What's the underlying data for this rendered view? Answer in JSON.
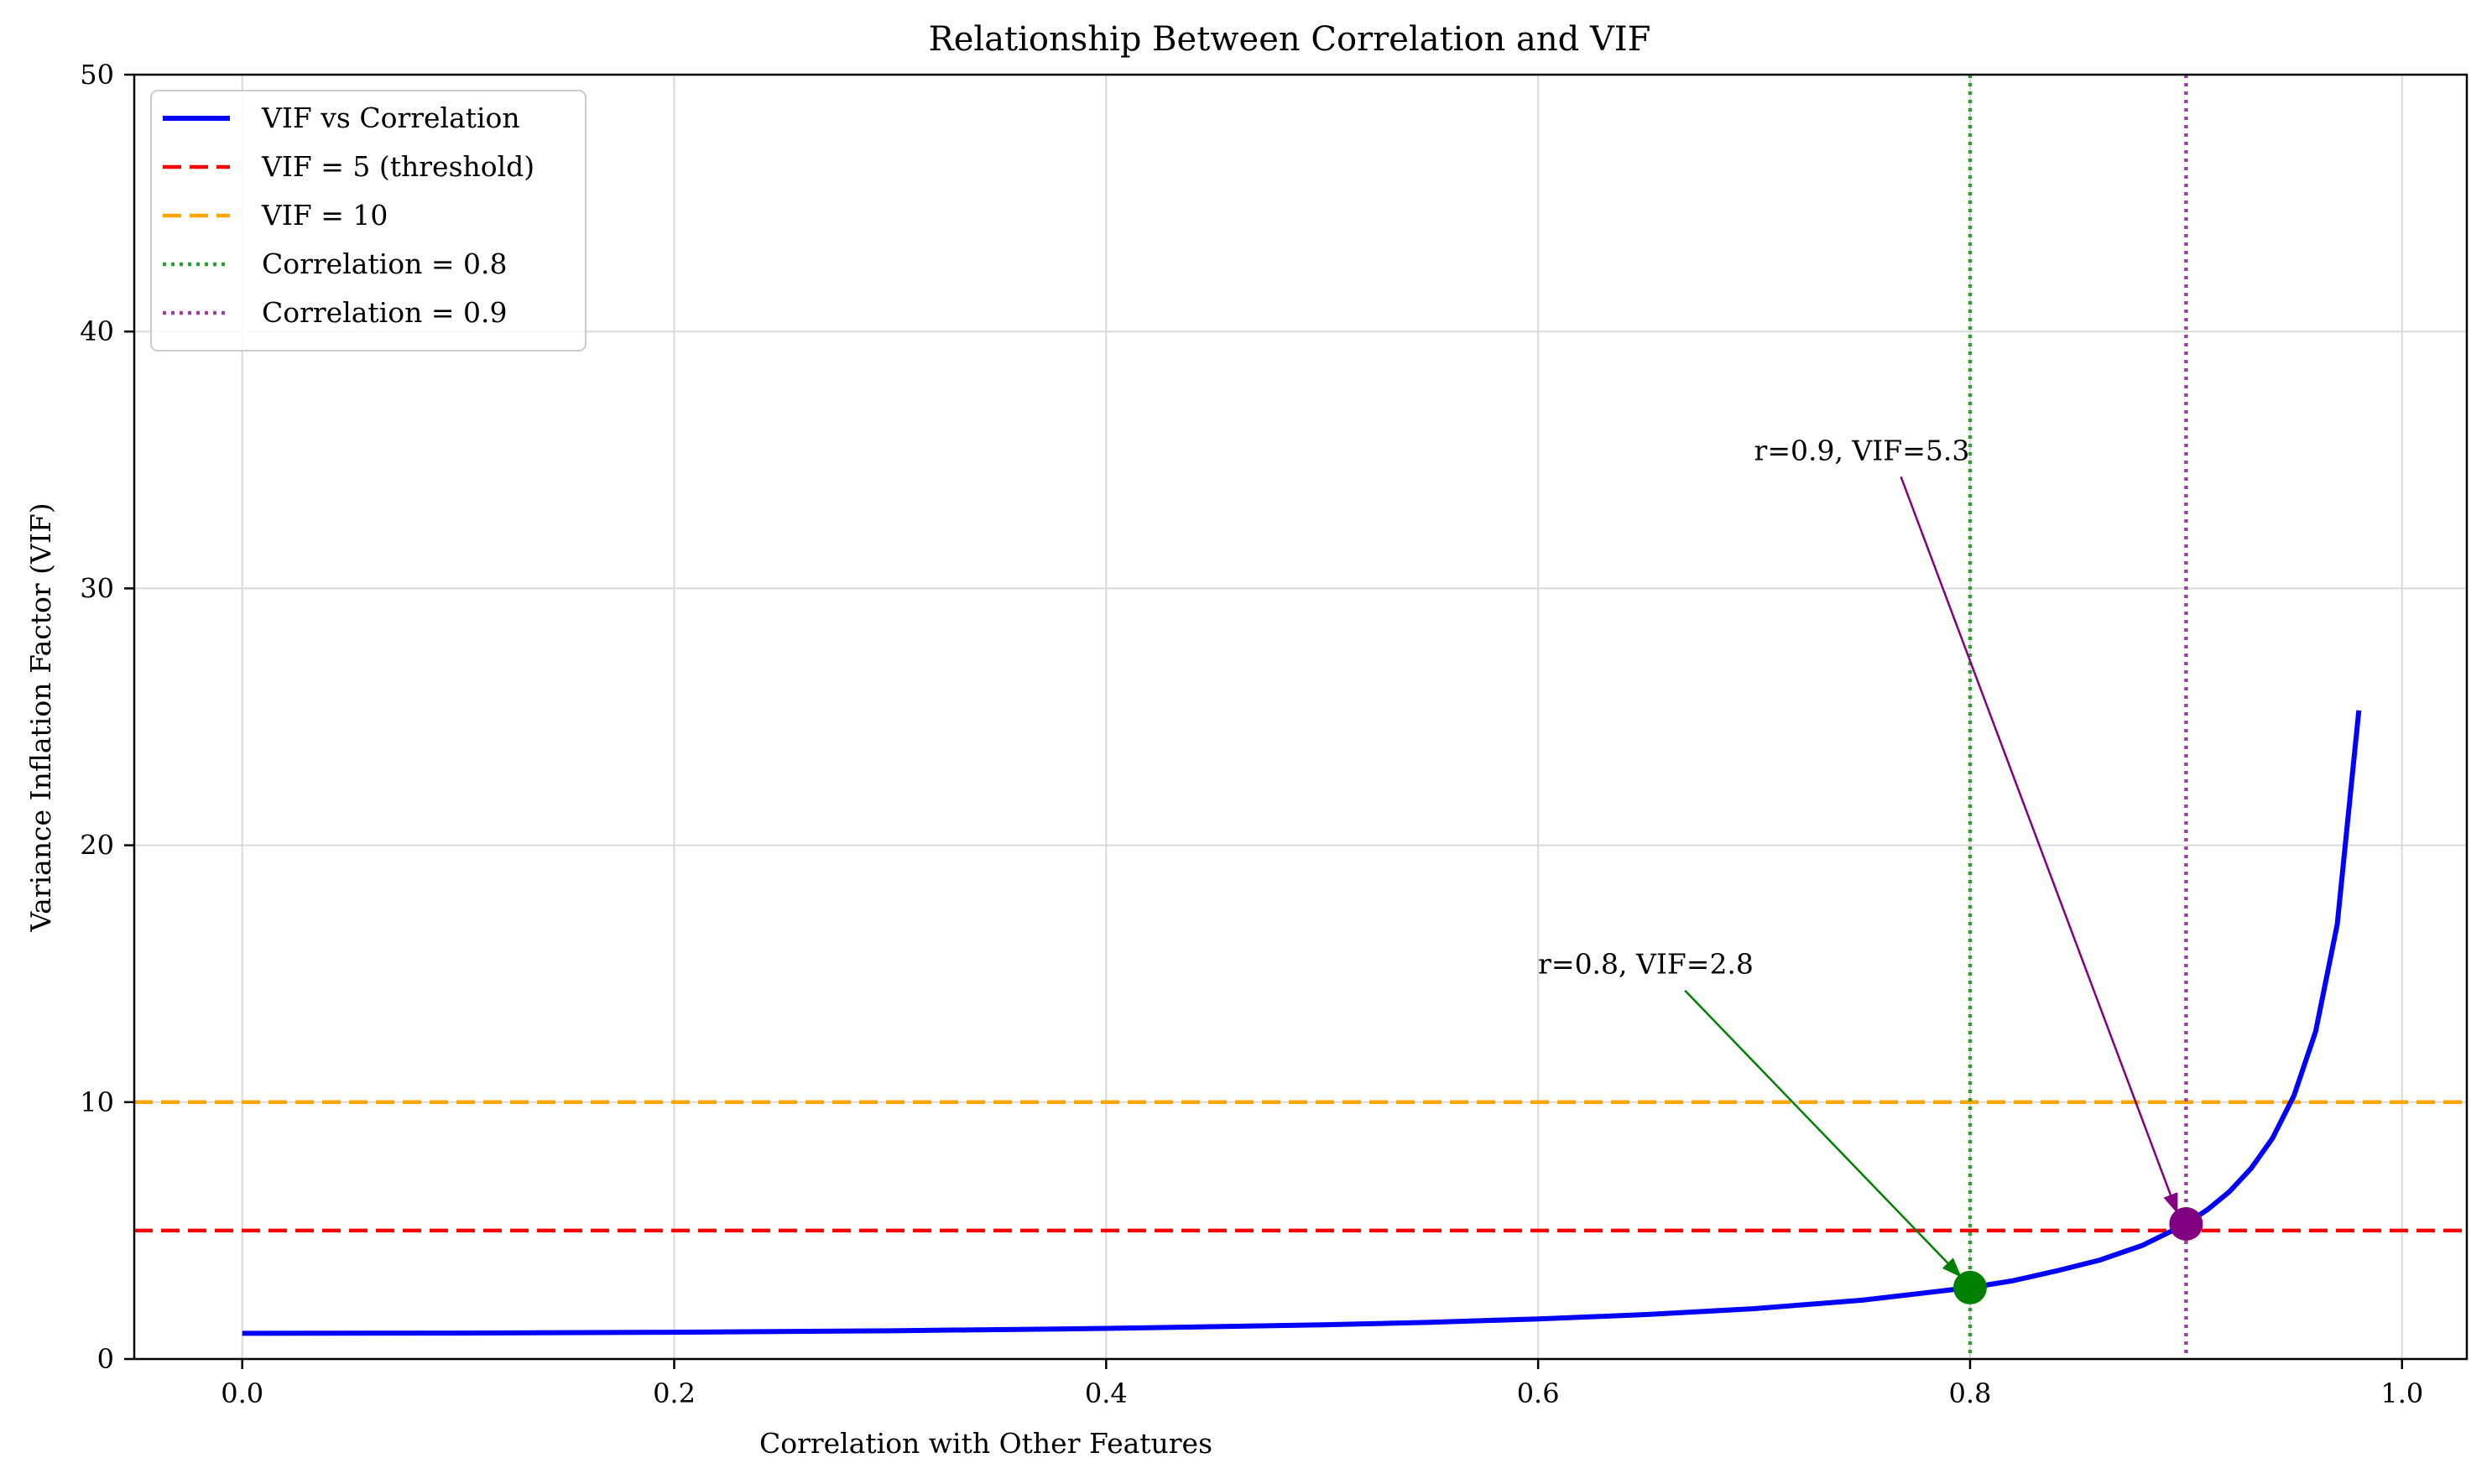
{
  "chart_data": {
    "type": "line",
    "title": "Relationship Between Correlation and VIF",
    "xlabel": "Correlation with Other Features",
    "ylabel": "Variance Inflation Factor (VIF)",
    "xlim": [
      -0.05,
      1.03
    ],
    "ylim": [
      0,
      50
    ],
    "xticks": [
      0.0,
      0.2,
      0.4,
      0.6,
      0.8,
      1.0
    ],
    "xtick_labels": [
      "0.0",
      "0.2",
      "0.4",
      "0.6",
      "0.8",
      "1.0"
    ],
    "yticks": [
      0,
      10,
      20,
      30,
      40,
      50
    ],
    "ytick_labels": [
      "0",
      "10",
      "20",
      "30",
      "40",
      "50"
    ],
    "grid": true,
    "legend_position": "top-left",
    "series": [
      {
        "name": "VIF vs Correlation",
        "color": "#0000ff",
        "x": [
          0.0,
          0.1,
          0.2,
          0.3,
          0.4,
          0.5,
          0.55,
          0.6,
          0.65,
          0.7,
          0.75,
          0.8,
          0.82,
          0.84,
          0.86,
          0.88,
          0.9,
          0.91,
          0.92,
          0.93,
          0.94,
          0.95,
          0.96,
          0.97,
          0.98
        ],
        "y": [
          1.0,
          1.01,
          1.04,
          1.1,
          1.19,
          1.33,
          1.43,
          1.56,
          1.73,
          1.96,
          2.29,
          2.78,
          3.05,
          3.43,
          3.85,
          4.43,
          5.26,
          5.82,
          6.51,
          7.41,
          8.59,
          10.26,
          12.75,
          16.92,
          25.25
        ]
      }
    ],
    "reference_lines": [
      {
        "name": "VIF = 5 (threshold)",
        "orientation": "horizontal",
        "value": 5,
        "color": "#ff0000",
        "style": "dashed"
      },
      {
        "name": "VIF = 10",
        "orientation": "horizontal",
        "value": 10,
        "color": "#ffa500",
        "style": "dashed"
      },
      {
        "name": "Correlation = 0.8",
        "orientation": "vertical",
        "value": 0.8,
        "color": "#2ca02c",
        "style": "dotted"
      },
      {
        "name": "Correlation = 0.9",
        "orientation": "vertical",
        "value": 0.9,
        "color": "#a040a0",
        "style": "dotted"
      }
    ],
    "highlight_points": [
      {
        "x": 0.8,
        "y": 2.78,
        "color": "#008000",
        "label": "r=0.8, VIF=2.8",
        "text_x": 0.6,
        "text_y": 15
      },
      {
        "x": 0.9,
        "y": 5.26,
        "color": "#800080",
        "label": "r=0.9, VIF=5.3",
        "text_x": 0.7,
        "text_y": 35
      }
    ]
  }
}
